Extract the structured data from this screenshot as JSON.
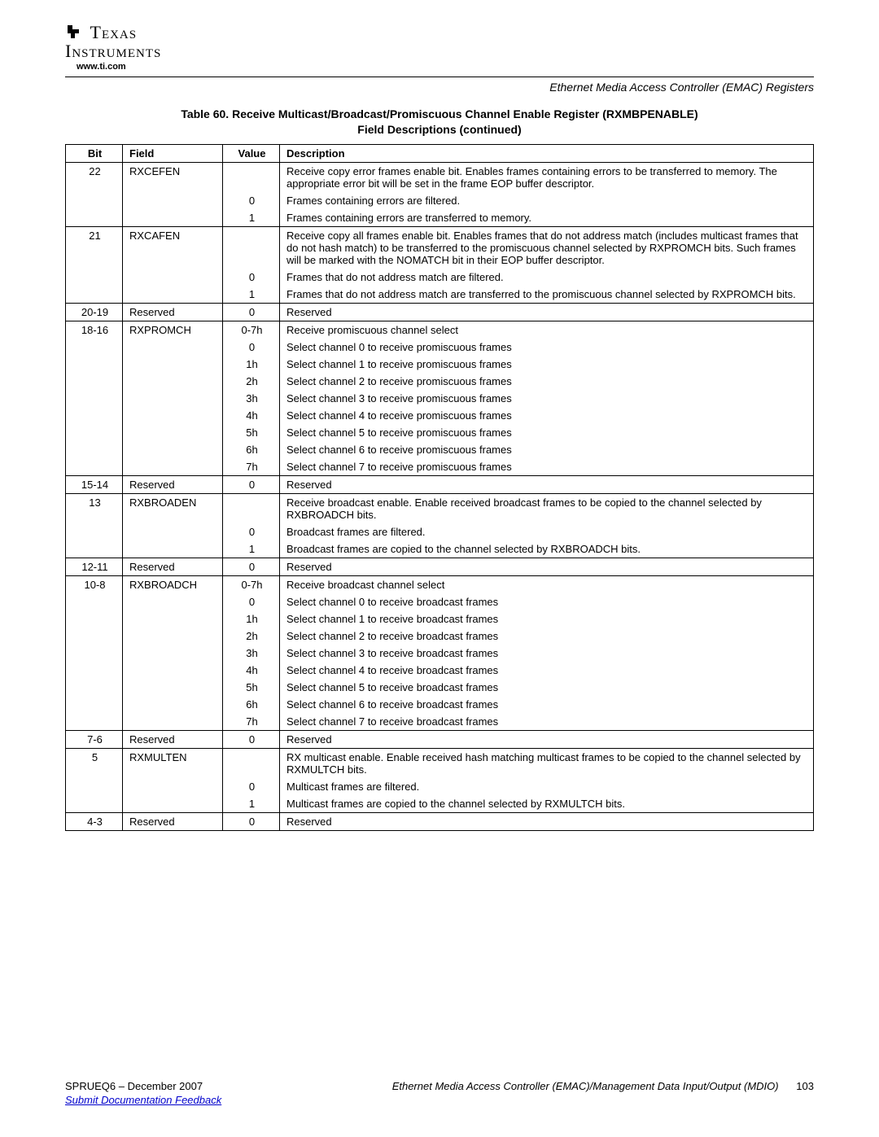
{
  "header": {
    "logo_line1": "Texas",
    "logo_line2": "Instruments",
    "url": "www.ti.com",
    "section": "Ethernet Media Access Controller (EMAC) Registers"
  },
  "caption": {
    "line1": "Table 60. Receive Multicast/Broadcast/Promiscuous Channel Enable Register (RXMBPENABLE)",
    "line2": "Field Descriptions  (continued)"
  },
  "columns": {
    "bit": "Bit",
    "field": "Field",
    "value": "Value",
    "desc": "Description"
  },
  "rows": [
    {
      "sep": true,
      "bit": "22",
      "field": "RXCEFEN",
      "value": "",
      "desc": "Receive copy error frames enable bit. Enables frames containing errors to be transferred to memory. The appropriate error bit will be set in the frame EOP buffer descriptor."
    },
    {
      "sep": false,
      "bit": "",
      "field": "",
      "value": "0",
      "desc": "Frames containing errors are filtered."
    },
    {
      "sep": false,
      "bit": "",
      "field": "",
      "value": "1",
      "desc": "Frames containing errors are transferred to memory."
    },
    {
      "sep": true,
      "bit": "21",
      "field": "RXCAFEN",
      "value": "",
      "desc": "Receive copy all frames enable bit. Enables frames that do not address match (includes multicast frames that do not hash match) to be transferred to the promiscuous channel selected by RXPROMCH bits. Such frames will be marked with the NOMATCH bit in their EOP buffer descriptor."
    },
    {
      "sep": false,
      "bit": "",
      "field": "",
      "value": "0",
      "desc": "Frames that do not address match are filtered."
    },
    {
      "sep": false,
      "bit": "",
      "field": "",
      "value": "1",
      "desc": "Frames that do not address match are transferred to the promiscuous channel selected by RXPROMCH bits."
    },
    {
      "sep": true,
      "bit": "20-19",
      "field": "Reserved",
      "value": "0",
      "desc": "Reserved"
    },
    {
      "sep": true,
      "bit": "18-16",
      "field": "RXPROMCH",
      "value": "0-7h",
      "desc": "Receive promiscuous channel select"
    },
    {
      "sep": false,
      "bit": "",
      "field": "",
      "value": "0",
      "desc": "Select channel 0 to receive promiscuous frames"
    },
    {
      "sep": false,
      "bit": "",
      "field": "",
      "value": "1h",
      "desc": "Select channel 1 to receive promiscuous frames"
    },
    {
      "sep": false,
      "bit": "",
      "field": "",
      "value": "2h",
      "desc": "Select channel 2 to receive promiscuous frames"
    },
    {
      "sep": false,
      "bit": "",
      "field": "",
      "value": "3h",
      "desc": "Select channel 3 to receive promiscuous frames"
    },
    {
      "sep": false,
      "bit": "",
      "field": "",
      "value": "4h",
      "desc": "Select channel 4 to receive promiscuous frames"
    },
    {
      "sep": false,
      "bit": "",
      "field": "",
      "value": "5h",
      "desc": "Select channel 5 to receive promiscuous frames"
    },
    {
      "sep": false,
      "bit": "",
      "field": "",
      "value": "6h",
      "desc": "Select channel 6 to receive promiscuous frames"
    },
    {
      "sep": false,
      "bit": "",
      "field": "",
      "value": "7h",
      "desc": "Select channel 7 to receive promiscuous frames"
    },
    {
      "sep": true,
      "bit": "15-14",
      "field": "Reserved",
      "value": "0",
      "desc": "Reserved"
    },
    {
      "sep": true,
      "bit": "13",
      "field": "RXBROADEN",
      "value": "",
      "desc": "Receive broadcast enable. Enable received broadcast frames to be copied to the channel selected by RXBROADCH bits."
    },
    {
      "sep": false,
      "bit": "",
      "field": "",
      "value": "0",
      "desc": "Broadcast frames are filtered."
    },
    {
      "sep": false,
      "bit": "",
      "field": "",
      "value": "1",
      "desc": "Broadcast frames are copied to the channel selected by RXBROADCH bits."
    },
    {
      "sep": true,
      "bit": "12-11",
      "field": "Reserved",
      "value": "0",
      "desc": "Reserved"
    },
    {
      "sep": true,
      "bit": "10-8",
      "field": "RXBROADCH",
      "value": "0-7h",
      "desc": "Receive broadcast channel select"
    },
    {
      "sep": false,
      "bit": "",
      "field": "",
      "value": "0",
      "desc": "Select channel 0 to receive broadcast frames"
    },
    {
      "sep": false,
      "bit": "",
      "field": "",
      "value": "1h",
      "desc": "Select channel 1 to receive broadcast frames"
    },
    {
      "sep": false,
      "bit": "",
      "field": "",
      "value": "2h",
      "desc": "Select channel 2 to receive broadcast frames"
    },
    {
      "sep": false,
      "bit": "",
      "field": "",
      "value": "3h",
      "desc": "Select channel 3 to receive broadcast frames"
    },
    {
      "sep": false,
      "bit": "",
      "field": "",
      "value": "4h",
      "desc": "Select channel 4 to receive broadcast frames"
    },
    {
      "sep": false,
      "bit": "",
      "field": "",
      "value": "5h",
      "desc": "Select channel 5 to receive broadcast frames"
    },
    {
      "sep": false,
      "bit": "",
      "field": "",
      "value": "6h",
      "desc": "Select channel 6 to receive broadcast frames"
    },
    {
      "sep": false,
      "bit": "",
      "field": "",
      "value": "7h",
      "desc": "Select channel 7 to receive broadcast frames"
    },
    {
      "sep": true,
      "bit": "7-6",
      "field": "Reserved",
      "value": "0",
      "desc": "Reserved"
    },
    {
      "sep": true,
      "bit": "5",
      "field": "RXMULTEN",
      "value": "",
      "desc": "RX multicast enable. Enable received hash matching multicast frames to be copied to the channel selected by RXMULTCH bits."
    },
    {
      "sep": false,
      "bit": "",
      "field": "",
      "value": "0",
      "desc": "Multicast frames are filtered."
    },
    {
      "sep": false,
      "bit": "",
      "field": "",
      "value": "1",
      "desc": "Multicast frames are copied to the channel selected by RXMULTCH bits."
    },
    {
      "sep": true,
      "bit": "4-3",
      "field": "Reserved",
      "value": "0",
      "desc": "Reserved",
      "last": true
    }
  ],
  "footer": {
    "left": "SPRUEQ6 – December 2007",
    "mid": "Ethernet Media Access Controller (EMAC)/Management Data Input/Output (MDIO)",
    "page": "103",
    "link": "Submit Documentation Feedback"
  }
}
